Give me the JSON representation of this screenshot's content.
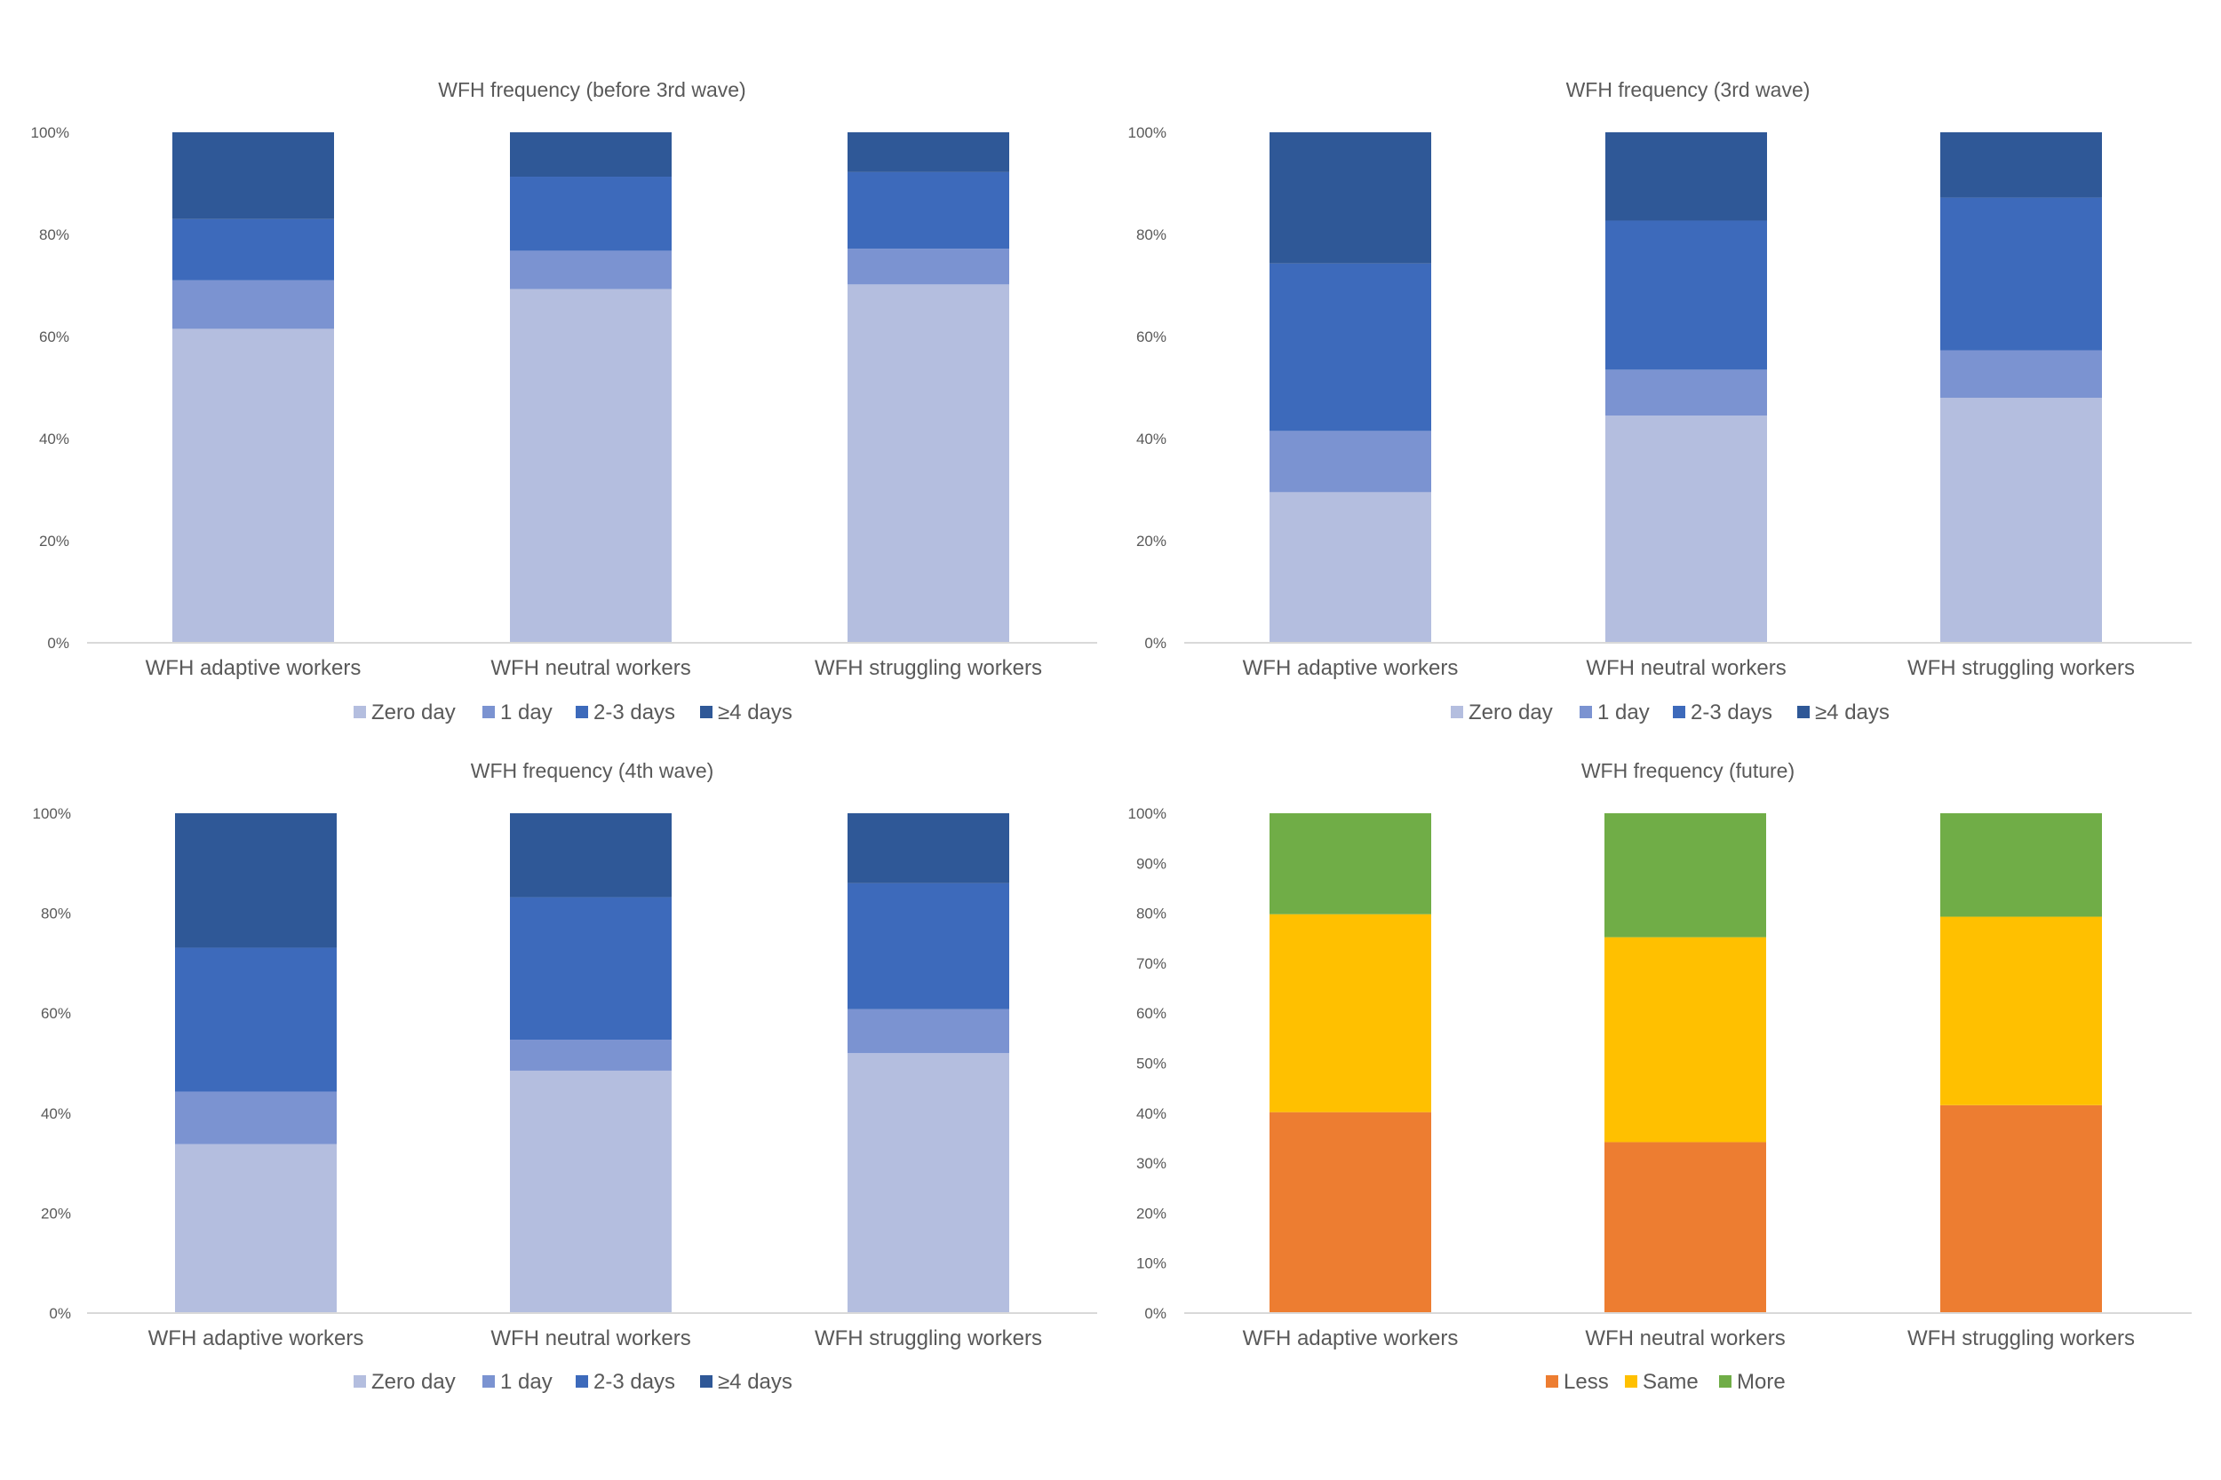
{
  "chart_data": [
    {
      "type": "bar",
      "stacked": true,
      "normalized": true,
      "title": "WFH frequency (before 3rd wave)",
      "xlabel": "",
      "ylabel": "",
      "categories": [
        "WFH adaptive workers",
        "WFH neutral workers",
        "WFH struggling workers"
      ],
      "series": [
        {
          "name": "Zero day",
          "color": "#b4bedf",
          "values": [
            61.5,
            69.3,
            70.2
          ]
        },
        {
          "name": "1 day",
          "color": "#7b93d1",
          "values": [
            9.5,
            7.5,
            7.0
          ]
        },
        {
          "name": "2-3 days",
          "color": "#3d6abb",
          "values": [
            12.0,
            14.5,
            15.0
          ]
        },
        {
          "name": "≥4 days",
          "color": "#2f5897",
          "values": [
            17.0,
            8.7,
            7.8
          ]
        }
      ],
      "ylim": [
        0,
        100
      ],
      "yticks": [
        "0%",
        "20%",
        "40%",
        "60%",
        "80%",
        "100%"
      ],
      "legend_position": "bottom"
    },
    {
      "type": "bar",
      "stacked": true,
      "normalized": true,
      "title": "WFH frequency (3rd wave)",
      "xlabel": "",
      "ylabel": "",
      "categories": [
        "WFH adaptive workers",
        "WFH neutral workers",
        "WFH struggling workers"
      ],
      "series": [
        {
          "name": "Zero day",
          "color": "#b4bedf",
          "values": [
            29.5,
            44.5,
            48.0
          ]
        },
        {
          "name": "1 day",
          "color": "#7b93d1",
          "values": [
            12.0,
            9.0,
            9.3
          ]
        },
        {
          "name": "2-3 days",
          "color": "#3d6abb",
          "values": [
            32.8,
            29.2,
            29.9
          ]
        },
        {
          "name": "≥4 days",
          "color": "#2f5897",
          "values": [
            25.7,
            17.3,
            12.8
          ]
        }
      ],
      "ylim": [
        0,
        100
      ],
      "yticks": [
        "0%",
        "20%",
        "40%",
        "60%",
        "80%",
        "100%"
      ],
      "legend_position": "bottom"
    },
    {
      "type": "bar",
      "stacked": true,
      "normalized": true,
      "title": "WFH frequency (4th wave)",
      "xlabel": "",
      "ylabel": "",
      "categories": [
        "WFH adaptive workers",
        "WFH neutral workers",
        "WFH struggling workers"
      ],
      "series": [
        {
          "name": "Zero day",
          "color": "#b4bedf",
          "values": [
            33.8,
            48.5,
            52.0
          ]
        },
        {
          "name": "1 day",
          "color": "#7b93d1",
          "values": [
            10.5,
            6.2,
            8.8
          ]
        },
        {
          "name": "2-3 days",
          "color": "#3d6abb",
          "values": [
            28.8,
            28.5,
            25.2
          ]
        },
        {
          "name": "≥4 days",
          "color": "#2f5897",
          "values": [
            26.9,
            16.8,
            14.0
          ]
        }
      ],
      "ylim": [
        0,
        100
      ],
      "yticks": [
        "0%",
        "20%",
        "40%",
        "60%",
        "80%",
        "100%"
      ],
      "legend_position": "bottom"
    },
    {
      "type": "bar",
      "stacked": true,
      "normalized": true,
      "title": "WFH frequency (future)",
      "xlabel": "",
      "ylabel": "",
      "categories": [
        "WFH adaptive workers",
        "WFH neutral workers",
        "WFH struggling workers"
      ],
      "series": [
        {
          "name": "Less",
          "color": "#ed7d31",
          "values": [
            40.2,
            34.2,
            41.6
          ]
        },
        {
          "name": "Same",
          "color": "#ffc000",
          "values": [
            39.6,
            41.0,
            37.7
          ]
        },
        {
          "name": "More",
          "color": "#70ad47",
          "values": [
            20.2,
            24.8,
            20.7
          ]
        }
      ],
      "ylim": [
        0,
        100
      ],
      "yticks": [
        "0%",
        "10%",
        "20%",
        "30%",
        "40%",
        "50%",
        "60%",
        "70%",
        "80%",
        "90%",
        "100%"
      ],
      "legend_position": "bottom"
    }
  ],
  "colors": {
    "axis_line": "#d9d9d9",
    "tick_text": "#595959",
    "title_text": "#595959"
  }
}
